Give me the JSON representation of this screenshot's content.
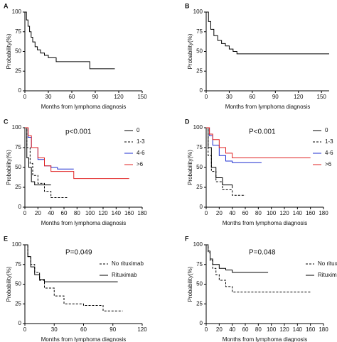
{
  "chart_data": [
    {
      "type": "line",
      "label": "A",
      "step": true,
      "xlabel": "Months from lymphoma diagnosis",
      "ylabel": "Probability(%)",
      "xlim": [
        0,
        150
      ],
      "ylim": [
        0,
        100
      ],
      "xticks": [
        0,
        30,
        60,
        90,
        120,
        150
      ],
      "yticks": [
        0,
        25,
        50,
        75,
        100
      ],
      "series": [
        {
          "color": "#000000",
          "dash": false,
          "x": [
            0,
            2,
            4,
            6,
            8,
            10,
            13,
            16,
            20,
            25,
            30,
            40,
            50,
            83,
            115
          ],
          "values": [
            100,
            90,
            82,
            75,
            68,
            62,
            56,
            52,
            48,
            45,
            42,
            37,
            37,
            28,
            28
          ]
        }
      ]
    },
    {
      "type": "line",
      "label": "B",
      "step": true,
      "xlabel": "Months from lymphoma diagnosis",
      "ylabel": "Probability(%)",
      "xlim": [
        0,
        160
      ],
      "ylim": [
        0,
        100
      ],
      "xticks": [
        0,
        30,
        60,
        90,
        120,
        150
      ],
      "yticks": [
        0,
        25,
        50,
        75,
        100
      ],
      "series": [
        {
          "color": "#000000",
          "dash": false,
          "x": [
            0,
            3,
            6,
            10,
            15,
            20,
            25,
            30,
            35,
            40,
            160
          ],
          "values": [
            100,
            88,
            78,
            70,
            64,
            60,
            57,
            53,
            50,
            47,
            47
          ]
        }
      ]
    },
    {
      "type": "line",
      "label": "C",
      "step": true,
      "xlabel": "Months from lymphoma diagnosis",
      "ylabel": "Probability(%)",
      "annotation": "p<0.001",
      "xlim": [
        0,
        180
      ],
      "ylim": [
        0,
        100
      ],
      "xticks": [
        0,
        20,
        40,
        60,
        80,
        100,
        120,
        140,
        160,
        180
      ],
      "yticks": [
        0,
        25,
        50,
        75,
        100
      ],
      "series": [
        {
          "name": "0",
          "color": "#000000",
          "dash": false,
          "x": [
            0,
            3,
            6,
            10,
            15,
            40
          ],
          "values": [
            100,
            62,
            50,
            32,
            28,
            28
          ]
        },
        {
          "name": "1-3",
          "color": "#000000",
          "dash": true,
          "x": [
            0,
            3,
            8,
            12,
            20,
            30,
            40,
            65
          ],
          "values": [
            100,
            75,
            55,
            40,
            30,
            20,
            12,
            12
          ]
        },
        {
          "name": "4-6",
          "color": "#1f2fd0",
          "dash": false,
          "x": [
            0,
            5,
            10,
            20,
            30,
            40,
            50,
            75
          ],
          "values": [
            100,
            88,
            75,
            60,
            52,
            50,
            48,
            48
          ]
        },
        {
          "name": ">6",
          "color": "#e02020",
          "dash": false,
          "x": [
            0,
            5,
            10,
            20,
            30,
            40,
            75,
            160
          ],
          "values": [
            100,
            90,
            75,
            62,
            52,
            45,
            36,
            36
          ]
        }
      ]
    },
    {
      "type": "line",
      "label": "D",
      "step": true,
      "xlabel": "Months from lymphoma diagnosis",
      "ylabel": "Probability(%)",
      "annotation": "P<0.001",
      "xlim": [
        0,
        180
      ],
      "ylim": [
        0,
        100
      ],
      "xticks": [
        0,
        20,
        40,
        60,
        80,
        100,
        120,
        140,
        160,
        180
      ],
      "yticks": [
        0,
        25,
        50,
        75,
        100
      ],
      "series": [
        {
          "name": "0",
          "color": "#000000",
          "dash": false,
          "x": [
            0,
            3,
            8,
            15,
            25,
            40
          ],
          "values": [
            100,
            75,
            50,
            37,
            28,
            24
          ]
        },
        {
          "name": "1-3",
          "color": "#000000",
          "dash": true,
          "x": [
            0,
            3,
            8,
            15,
            25,
            40,
            60
          ],
          "values": [
            100,
            65,
            45,
            32,
            22,
            15,
            15
          ]
        },
        {
          "name": "4-6",
          "color": "#1f2fd0",
          "dash": false,
          "x": [
            0,
            5,
            10,
            20,
            30,
            40,
            85
          ],
          "values": [
            100,
            90,
            78,
            65,
            58,
            56,
            56
          ]
        },
        {
          "name": ">6",
          "color": "#e02020",
          "dash": false,
          "x": [
            0,
            5,
            10,
            20,
            30,
            40,
            160
          ],
          "values": [
            100,
            92,
            85,
            75,
            68,
            62,
            62
          ]
        }
      ]
    },
    {
      "type": "line",
      "label": "E",
      "step": true,
      "xlabel": "Months from lymphoma diagnosis",
      "ylabel": "Probability(%)",
      "annotation": "P=0.049",
      "xlim": [
        0,
        120
      ],
      "ylim": [
        0,
        100
      ],
      "xticks": [
        0,
        30,
        60,
        90,
        120
      ],
      "yticks": [
        0,
        25,
        50,
        75,
        100
      ],
      "series": [
        {
          "name": "No rituximab",
          "color": "#000000",
          "dash": true,
          "x": [
            0,
            3,
            6,
            10,
            15,
            20,
            30,
            40,
            60,
            80,
            100
          ],
          "values": [
            100,
            85,
            75,
            65,
            55,
            45,
            35,
            25,
            23,
            16,
            16
          ]
        },
        {
          "name": "Rituximab",
          "color": "#000000",
          "dash": false,
          "x": [
            0,
            3,
            6,
            10,
            15,
            20,
            95
          ],
          "values": [
            100,
            85,
            72,
            62,
            56,
            53,
            53
          ]
        }
      ]
    },
    {
      "type": "line",
      "label": "F",
      "step": true,
      "xlabel": "Months from lymphoma diagnosis",
      "ylabel": "Probability(%)",
      "annotation": "P=0.048",
      "xlim": [
        0,
        180
      ],
      "ylim": [
        0,
        100
      ],
      "xticks": [
        0,
        20,
        40,
        60,
        80,
        100,
        120,
        140,
        160,
        180
      ],
      "yticks": [
        0,
        25,
        50,
        75,
        100
      ],
      "series": [
        {
          "name": "No rituximab",
          "color": "#000000",
          "dash": true,
          "x": [
            0,
            3,
            6,
            10,
            15,
            20,
            30,
            40,
            160
          ],
          "values": [
            100,
            90,
            80,
            70,
            62,
            55,
            47,
            40,
            40
          ]
        },
        {
          "name": "Rituximab",
          "color": "#000000",
          "dash": false,
          "x": [
            0,
            3,
            6,
            10,
            20,
            30,
            40,
            95
          ],
          "values": [
            100,
            92,
            82,
            75,
            70,
            68,
            65,
            65
          ]
        }
      ]
    }
  ]
}
